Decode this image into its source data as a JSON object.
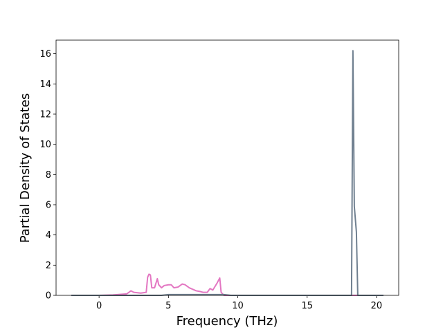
{
  "chart_data": {
    "type": "line",
    "x_label": "Frequency (THz)",
    "y_label": "Partial Density of States",
    "xlim": [
      -3.1,
      21.6
    ],
    "ylim": [
      0,
      16.9
    ],
    "xticks": [
      0,
      5,
      10,
      15,
      20
    ],
    "yticks": [
      0,
      2,
      4,
      6,
      8,
      10,
      12,
      14,
      16
    ],
    "series": [
      {
        "color": "#e377c2",
        "x": [
          -2,
          0,
          1,
          2,
          2.3,
          2.5,
          3,
          3.4,
          3.5,
          3.6,
          3.7,
          3.8,
          4.0,
          4.2,
          4.3,
          4.5,
          4.7,
          5,
          5.2,
          5.4,
          5.7,
          6,
          6.2,
          6.5,
          7,
          7.3,
          7.5,
          7.8,
          8.0,
          8.2,
          8.5,
          8.7,
          8.8,
          9,
          20.5
        ],
        "values": [
          0,
          0,
          0.03,
          0.1,
          0.3,
          0.2,
          0.15,
          0.2,
          1.2,
          1.4,
          1.35,
          0.5,
          0.5,
          1.1,
          0.7,
          0.5,
          0.65,
          0.7,
          0.7,
          0.5,
          0.55,
          0.75,
          0.7,
          0.5,
          0.3,
          0.25,
          0.2,
          0.2,
          0.45,
          0.35,
          0.8,
          1.15,
          0.2,
          0,
          0
        ]
      },
      {
        "color": "#708090",
        "x": [
          -2,
          4.5,
          5,
          9,
          9.5,
          18.2,
          18.3,
          18.4,
          18.55,
          18.65,
          20.5
        ],
        "values": [
          0,
          0,
          0.05,
          0.05,
          0,
          0,
          16.2,
          5.9,
          4.2,
          0,
          0
        ]
      }
    ]
  }
}
